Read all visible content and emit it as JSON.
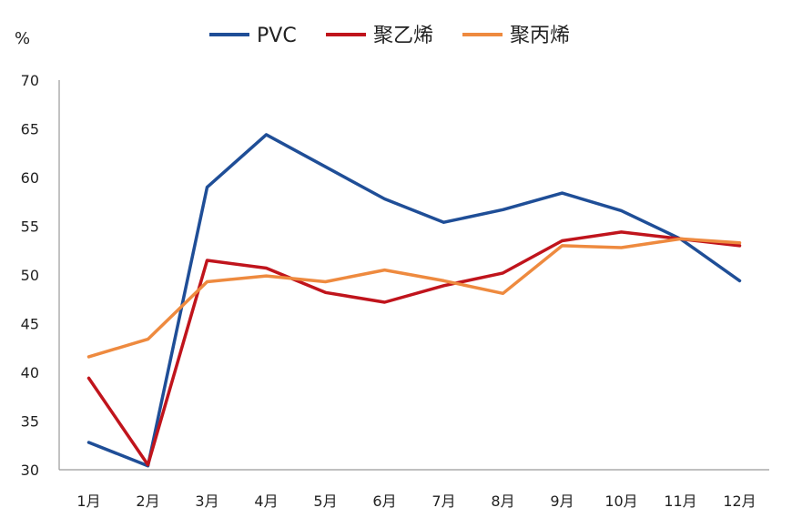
{
  "chart_data": {
    "type": "line",
    "y_unit_label": "%",
    "categories": [
      "1月",
      "2月",
      "3月",
      "4月",
      "5月",
      "6月",
      "7月",
      "8月",
      "9月",
      "10月",
      "11月",
      "12月"
    ],
    "ylim": [
      30,
      70
    ],
    "yticks": [
      30,
      35,
      40,
      45,
      50,
      55,
      60,
      65,
      70
    ],
    "grid": false,
    "legend_position": "top",
    "series": [
      {
        "name": "PVC",
        "color": "#1f4e97",
        "values": [
          32.8,
          30.4,
          59.0,
          64.4,
          61.1,
          57.8,
          55.4,
          56.7,
          58.4,
          56.6,
          53.7,
          49.4
        ]
      },
      {
        "name": "聚乙烯",
        "color": "#c0141c",
        "values": [
          39.4,
          30.5,
          51.5,
          50.7,
          48.2,
          47.2,
          48.9,
          50.2,
          53.5,
          54.4,
          53.7,
          53.0
        ]
      },
      {
        "name": "聚丙烯",
        "color": "#ee8a3f",
        "values": [
          41.6,
          43.4,
          49.3,
          49.9,
          49.3,
          50.5,
          49.4,
          48.1,
          53.0,
          52.8,
          53.7,
          53.3
        ]
      }
    ]
  }
}
